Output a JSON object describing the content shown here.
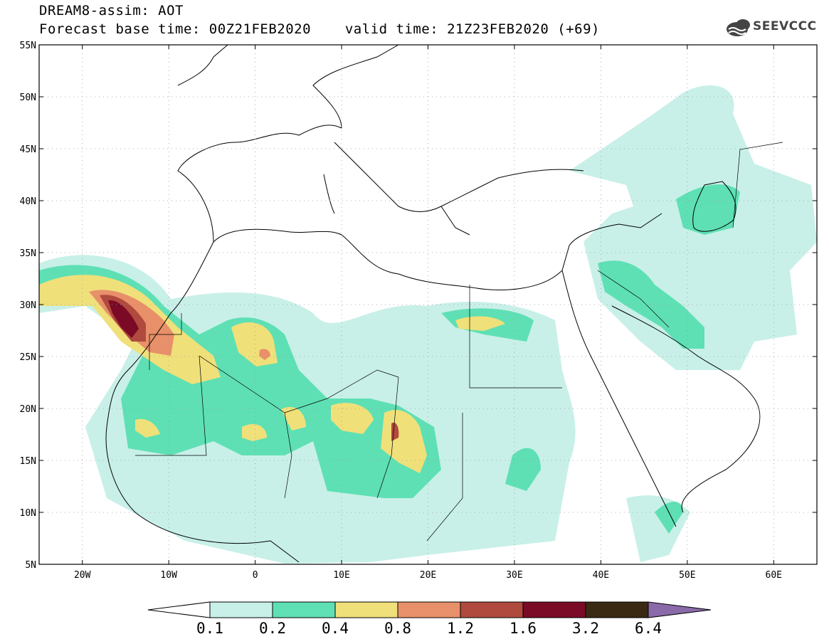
{
  "header": {
    "title": "DREAM8-assim: AOT",
    "base_time_label": "Forecast base time: 00Z21FEB2020",
    "valid_time_label": "valid time: 21Z23FEB2020 (+69)"
  },
  "logo": {
    "text": "SEEVCCC",
    "icon": "cloud-icon"
  },
  "map": {
    "lon_range": [
      -25,
      65
    ],
    "lat_range": [
      5,
      55
    ],
    "lat_ticks": [
      "5N",
      "10N",
      "15N",
      "20N",
      "25N",
      "30N",
      "35N",
      "40N",
      "45N",
      "50N",
      "55N"
    ],
    "lon_ticks": [
      "20W",
      "10W",
      "0",
      "10E",
      "20E",
      "30E",
      "40E",
      "50E",
      "60E"
    ],
    "grid": true
  },
  "colorbar": {
    "labels": [
      "0.1",
      "0.2",
      "0.4",
      "0.8",
      "1.2",
      "1.6",
      "3.2",
      "6.4"
    ],
    "colors": [
      "#c8f0e8",
      "#5ee0b4",
      "#f0e07a",
      "#e8906a",
      "#b04a3e",
      "#7a0a26",
      "#3a2a14",
      "#8a6aa8"
    ]
  }
}
